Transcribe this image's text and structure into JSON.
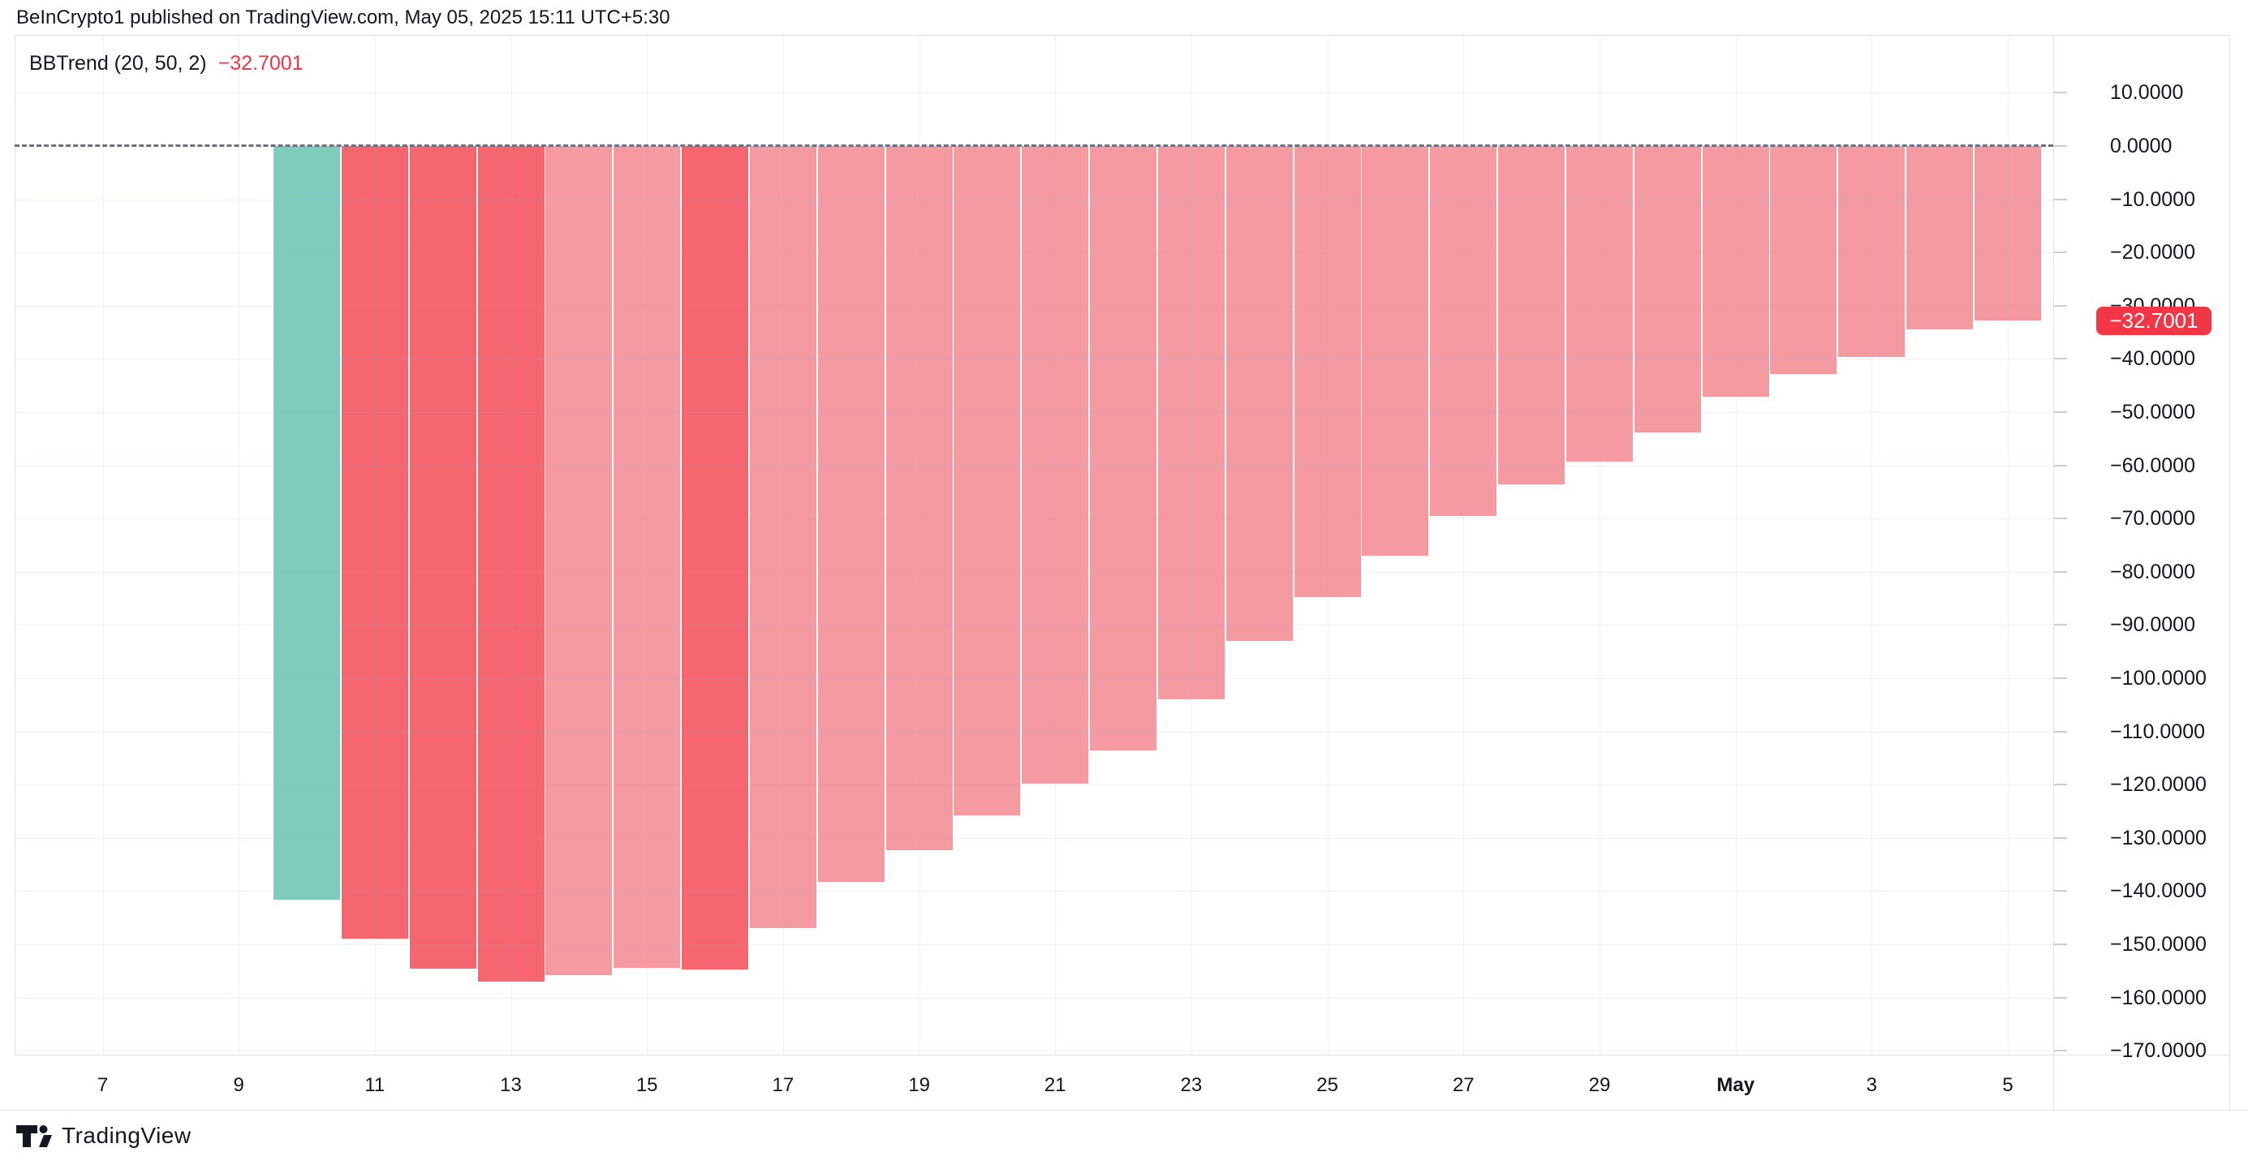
{
  "header": {
    "attribution": "BeInCrypto1 published on TradingView.com, May 05, 2025 15:11 UTC+5:30"
  },
  "indicator": {
    "name": "BBTrend (20, 50, 2)",
    "value": "−32.7001",
    "value_color": "#f23645"
  },
  "axis_badge": {
    "label": "−32.7001",
    "value": -32.7001,
    "bg": "#f23645"
  },
  "footer": {
    "logo_text": "TradingView"
  },
  "colors": {
    "up": "#7fccbd",
    "down_strong": "#f5666f",
    "down_weak": "#f69aa2",
    "text": "#131722",
    "badge": "#f23645",
    "zero_line": "#6e727e",
    "border": "#e0e3eb"
  },
  "chart_data": {
    "type": "bar",
    "title": "BBTrend (20, 50, 2)",
    "xlabel": "",
    "ylabel": "",
    "ylim": [
      -171,
      21
    ],
    "grid": true,
    "zero_line": "dashed",
    "legend_position": "none",
    "categories": [
      "Apr 10",
      "Apr 11",
      "Apr 12",
      "Apr 13",
      "Apr 14",
      "Apr 15",
      "Apr 16",
      "Apr 17",
      "Apr 18",
      "Apr 19",
      "Apr 20",
      "Apr 21",
      "Apr 22",
      "Apr 23",
      "Apr 24",
      "Apr 25",
      "Apr 26",
      "Apr 27",
      "Apr 28",
      "Apr 29",
      "Apr 30",
      "May 1",
      "May 2",
      "May 3",
      "May 4",
      "May 5"
    ],
    "values": [
      -141.6,
      -149.0,
      -154.5,
      -157.0,
      -155.8,
      -154.4,
      -154.7,
      -147.0,
      -138.3,
      -132.3,
      -125.8,
      -119.8,
      -113.5,
      -104.0,
      -93.0,
      -84.8,
      -76.9,
      -69.5,
      -63.6,
      -59.3,
      -53.8,
      -47.1,
      -42.8,
      -39.7,
      -34.5,
      -32.7001
    ],
    "bar_colors": [
      "up",
      "down_strong",
      "down_strong",
      "down_strong",
      "down_weak",
      "down_weak",
      "down_strong",
      "down_weak",
      "down_weak",
      "down_weak",
      "down_weak",
      "down_weak",
      "down_weak",
      "down_weak",
      "down_weak",
      "down_weak",
      "down_weak",
      "down_weak",
      "down_weak",
      "down_weak",
      "down_weak",
      "down_weak",
      "down_weak",
      "down_weak",
      "down_weak",
      "down_weak"
    ],
    "y_ticks": [
      10,
      0,
      -10,
      -20,
      -30,
      -40,
      -50,
      -60,
      -70,
      -80,
      -90,
      -100,
      -110,
      -120,
      -130,
      -140,
      -150,
      -160,
      -170
    ],
    "y_tick_labels": [
      "10.0000",
      "0.0000",
      "−10.0000",
      "−20.0000",
      "−30.0000",
      "−40.0000",
      "−50.0000",
      "−60.0000",
      "−70.0000",
      "−80.0000",
      "−90.0000",
      "−100.0000",
      "−110.0000",
      "−120.0000",
      "−130.0000",
      "−140.0000",
      "−150.0000",
      "−160.0000",
      "−170.0000"
    ],
    "x_ticks": [
      {
        "label": "7",
        "offset": -3,
        "bold": false
      },
      {
        "label": "9",
        "offset": -1,
        "bold": false
      },
      {
        "label": "11",
        "offset": 1,
        "bold": false
      },
      {
        "label": "13",
        "offset": 3,
        "bold": false
      },
      {
        "label": "15",
        "offset": 5,
        "bold": false
      },
      {
        "label": "17",
        "offset": 7,
        "bold": false
      },
      {
        "label": "19",
        "offset": 9,
        "bold": false
      },
      {
        "label": "21",
        "offset": 11,
        "bold": false
      },
      {
        "label": "23",
        "offset": 13,
        "bold": false
      },
      {
        "label": "25",
        "offset": 15,
        "bold": false
      },
      {
        "label": "27",
        "offset": 17,
        "bold": false
      },
      {
        "label": "29",
        "offset": 19,
        "bold": false
      },
      {
        "label": "May",
        "offset": 21,
        "bold": true
      },
      {
        "label": "3",
        "offset": 23,
        "bold": false
      },
      {
        "label": "5",
        "offset": 25,
        "bold": false
      }
    ]
  }
}
